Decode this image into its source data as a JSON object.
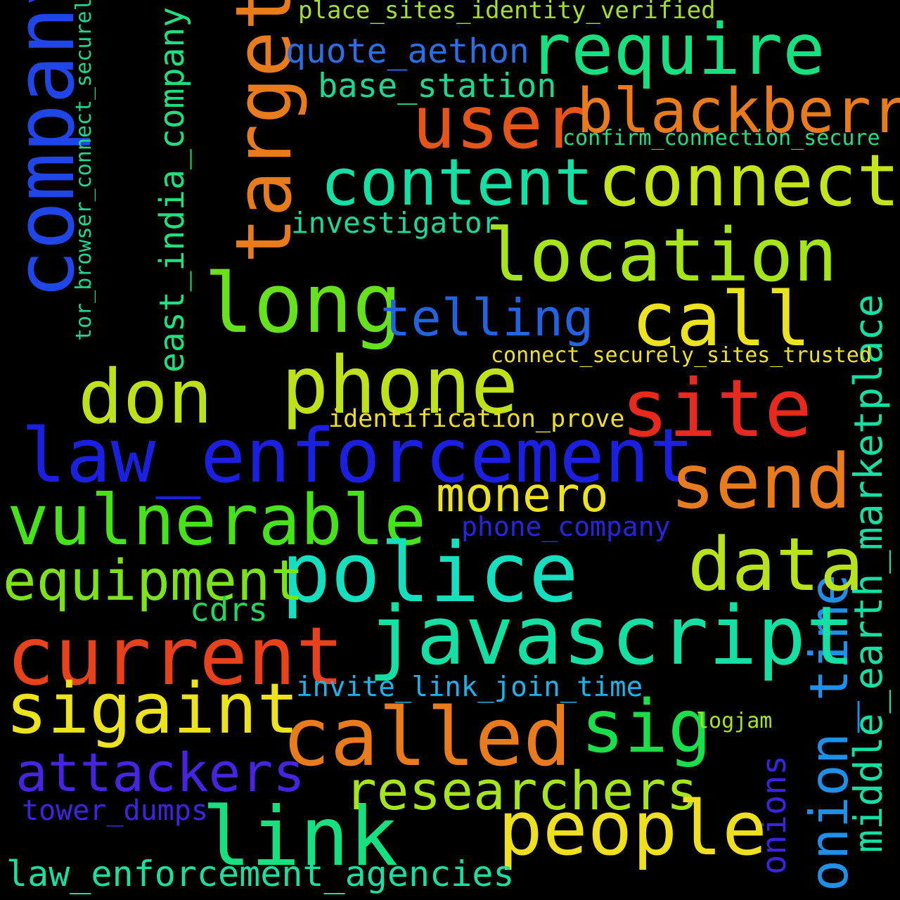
{
  "wordcloud": {
    "background": "#000000",
    "words": {
      "company": "company",
      "tor_browser_connect_securely": "tor_browser_connect_securely",
      "east_india_company": "east_india_company",
      "target": "target",
      "place_sites_identity_verified": "place_sites_identity_verified",
      "quote_aethon": "quote_aethon",
      "require": "require",
      "base_station": "base_station",
      "user": "user",
      "blackberry": "blackberry",
      "confirm_connection_secure": "confirm_connection_secure",
      "content": "content",
      "connect": "connect",
      "investigator": "investigator",
      "location": "location",
      "long": "long",
      "telling": "telling",
      "call": "call",
      "connect_securely_sites_trusted": "connect_securely_sites_trusted",
      "phone": "phone",
      "don": "don",
      "site": "site",
      "identification_prove": "identification_prove",
      "law_enforcement": "law_enforcement",
      "send": "send",
      "monero": "monero",
      "vulnerable": "vulnerable",
      "phone_company": "phone_company",
      "police": "police",
      "data": "data",
      "middle_earth_marketplace": "middle_earth_marketplace",
      "equipment": "equipment",
      "cdrs": "cdrs",
      "javascript": "javascript",
      "onion_time": "onion_time",
      "current": "current",
      "invite_link_join_time": "invite_link_join_time",
      "sigaint": "sigaint",
      "sig": "sig",
      "logjam": "logjam",
      "called": "called",
      "attackers": "attackers",
      "onions": "onions",
      "researchers": "researchers",
      "tower_dumps": "tower_dumps",
      "people": "people",
      "link": "link",
      "law_enforcement_agencies": "law_enforcement_agencies"
    }
  }
}
